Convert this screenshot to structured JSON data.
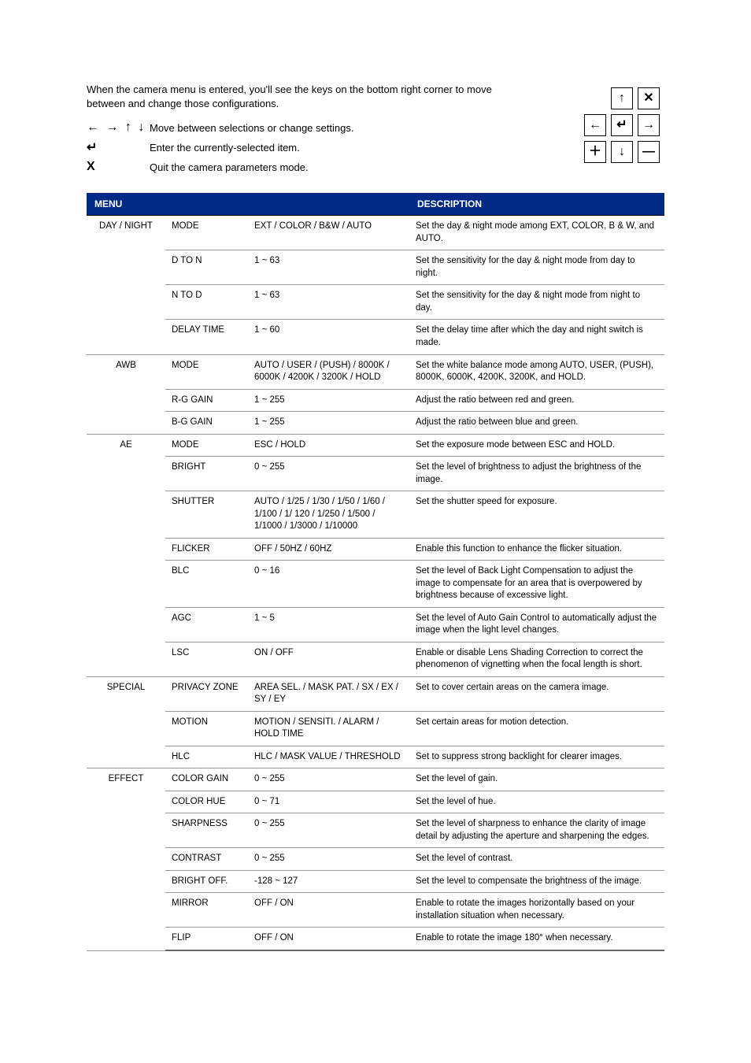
{
  "intro": {
    "paragraph": "When the camera menu is entered, you'll see the keys on the bottom right corner to move between and change those configurations.",
    "legend": [
      {
        "icon": "← → ↑ ↓",
        "text": "Move between selections or change settings."
      },
      {
        "icon": "↵",
        "text": "Enter the currently-selected item."
      },
      {
        "icon": "X",
        "text": "Quit the camera parameters mode."
      }
    ]
  },
  "keypad": {
    "rows": [
      [
        "",
        "↑",
        "✕"
      ],
      [
        "←",
        "↵",
        "→"
      ],
      [
        "＋",
        "↓",
        "—"
      ]
    ]
  },
  "header": {
    "menu": "MENU",
    "desc": "DESCRIPTION"
  },
  "colors": {
    "header_bg": "#002a86",
    "header_fg": "#ffffff",
    "border": "#999999",
    "section_border": "#000000"
  },
  "sections": [
    {
      "menu": "DAY / NIGHT",
      "rows": [
        {
          "param": "MODE",
          "value": "EXT / COLOR / B&W / AUTO",
          "desc": "Set the day & night mode among EXT, COLOR, B & W, and AUTO."
        },
        {
          "param": "D TO N",
          "value": "1 ~ 63",
          "desc": "Set the sensitivity for the day & night mode from day to night."
        },
        {
          "param": "N TO D",
          "value": "1 ~ 63",
          "desc": "Set the sensitivity for the day & night mode from night to day."
        },
        {
          "param": "DELAY TIME",
          "value": "1 ~ 60",
          "desc": "Set the delay time after which the day and night switch is made."
        }
      ]
    },
    {
      "menu": "AWB",
      "rows": [
        {
          "param": "MODE",
          "value": "AUTO / USER / (PUSH) / 8000K / 6000K / 4200K / 3200K / HOLD",
          "desc": "Set the white balance mode among AUTO, USER, (PUSH), 8000K, 6000K, 4200K, 3200K, and HOLD."
        },
        {
          "param": "R-G GAIN",
          "value": "1 ~ 255",
          "desc": "Adjust the ratio between red and green."
        },
        {
          "param": "B-G GAIN",
          "value": "1 ~ 255",
          "desc": "Adjust the ratio between blue and green."
        }
      ]
    },
    {
      "menu": "AE",
      "rows": [
        {
          "param": "MODE",
          "value": "ESC / HOLD",
          "desc": "Set the exposure mode between ESC and HOLD."
        },
        {
          "param": "BRIGHT",
          "value": "0 ~ 255",
          "desc": "Set the level of brightness to adjust the brightness of the image."
        },
        {
          "param": "SHUTTER",
          "value": "AUTO / 1/25 / 1/30 / 1/50 / 1/60 / 1/100 / 1/ 120 / 1/250 / 1/500 / 1/1000 / 1/3000 / 1/10000",
          "desc": "Set the shutter speed for exposure."
        },
        {
          "param": "FLICKER",
          "value": "OFF / 50HZ / 60HZ",
          "desc": "Enable this function to enhance the flicker situation."
        },
        {
          "param": "BLC",
          "value": "0 ~ 16",
          "desc": "Set the level of Back Light Compensation to adjust the image to compensate for an area that is overpowered by brightness because of excessive light."
        },
        {
          "param": "AGC",
          "value": "1 ~ 5",
          "desc": "Set the level of Auto Gain Control to automatically adjust the image when the light level changes."
        },
        {
          "param": "LSC",
          "value": "ON / OFF",
          "desc": "Enable or disable Lens Shading Correction to correct the phenomenon of vignetting when the focal length is short."
        }
      ]
    },
    {
      "menu": "SPECIAL",
      "rows": [
        {
          "param": "PRIVACY ZONE",
          "value": "AREA SEL. / MASK PAT. / SX / EX / SY / EY",
          "desc": "Set to cover certain areas on the camera image."
        },
        {
          "param": "MOTION",
          "value": "MOTION / SENSITI. / ALARM / HOLD TIME",
          "desc": "Set certain areas for motion detection."
        },
        {
          "param": "HLC",
          "value": "HLC / MASK VALUE / THRESHOLD",
          "desc": "Set to suppress strong backlight for clearer images."
        }
      ]
    },
    {
      "menu": "EFFECT",
      "rows": [
        {
          "param": "COLOR GAIN",
          "value": "0 ~ 255",
          "desc": "Set the level of gain."
        },
        {
          "param": "COLOR HUE",
          "value": "0 ~ 71",
          "desc": "Set the level of hue."
        },
        {
          "param": "SHARPNESS",
          "value": "0 ~ 255",
          "desc": "Set the level of sharpness to enhance the clarity of image detail by adjusting the aperture and sharpening the edges."
        },
        {
          "param": "CONTRAST",
          "value": "0 ~ 255",
          "desc": "Set the level of contrast."
        },
        {
          "param": "BRIGHT OFF.",
          "value": "-128 ~ 127",
          "desc": "Set the level to compensate the brightness of the image."
        },
        {
          "param": "MIRROR",
          "value": "OFF / ON",
          "desc": "Enable to rotate the images horizontally based on your installation situation when necessary."
        },
        {
          "param": "FLIP",
          "value": "OFF / ON",
          "desc": "Enable to rotate the image 180° when necessary."
        }
      ]
    }
  ]
}
